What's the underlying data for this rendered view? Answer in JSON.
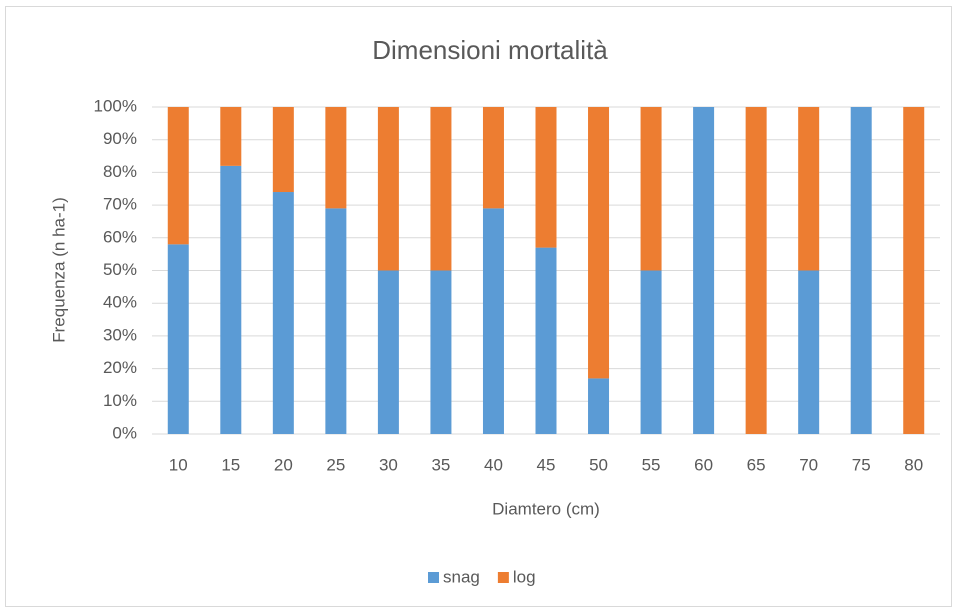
{
  "chart_data": {
    "type": "stacked_bar",
    "title": "Dimensioni mortalità",
    "x_label": "Diamtero (cm)",
    "y_label": "Frequenza (n ha-1)",
    "categories": [
      "10",
      "15",
      "20",
      "25",
      "30",
      "35",
      "40",
      "45",
      "50",
      "55",
      "60",
      "65",
      "70",
      "75",
      "80"
    ],
    "series": [
      {
        "name": "snag",
        "color": "#5b9bd5",
        "values": [
          58,
          82,
          74,
          69,
          50,
          50,
          69,
          57,
          17,
          50,
          100,
          0,
          50,
          100,
          0
        ]
      },
      {
        "name": "log",
        "color": "#ed7d31",
        "values": [
          42,
          18,
          26,
          31,
          50,
          50,
          31,
          43,
          83,
          50,
          0,
          100,
          50,
          0,
          100
        ]
      }
    ],
    "ylim": [
      0,
      100
    ],
    "yticks": [
      {
        "value": 0,
        "label": "0%"
      },
      {
        "value": 10,
        "label": "10%"
      },
      {
        "value": 20,
        "label": "20%"
      },
      {
        "value": 30,
        "label": "30%"
      },
      {
        "value": 40,
        "label": "40%"
      },
      {
        "value": 50,
        "label": "50%"
      },
      {
        "value": 60,
        "label": "60%"
      },
      {
        "value": 70,
        "label": "70%"
      },
      {
        "value": 80,
        "label": "80%"
      },
      {
        "value": 90,
        "label": "90%"
      },
      {
        "value": 100,
        "label": "100%"
      }
    ],
    "grid": true,
    "legend": "bottom"
  }
}
